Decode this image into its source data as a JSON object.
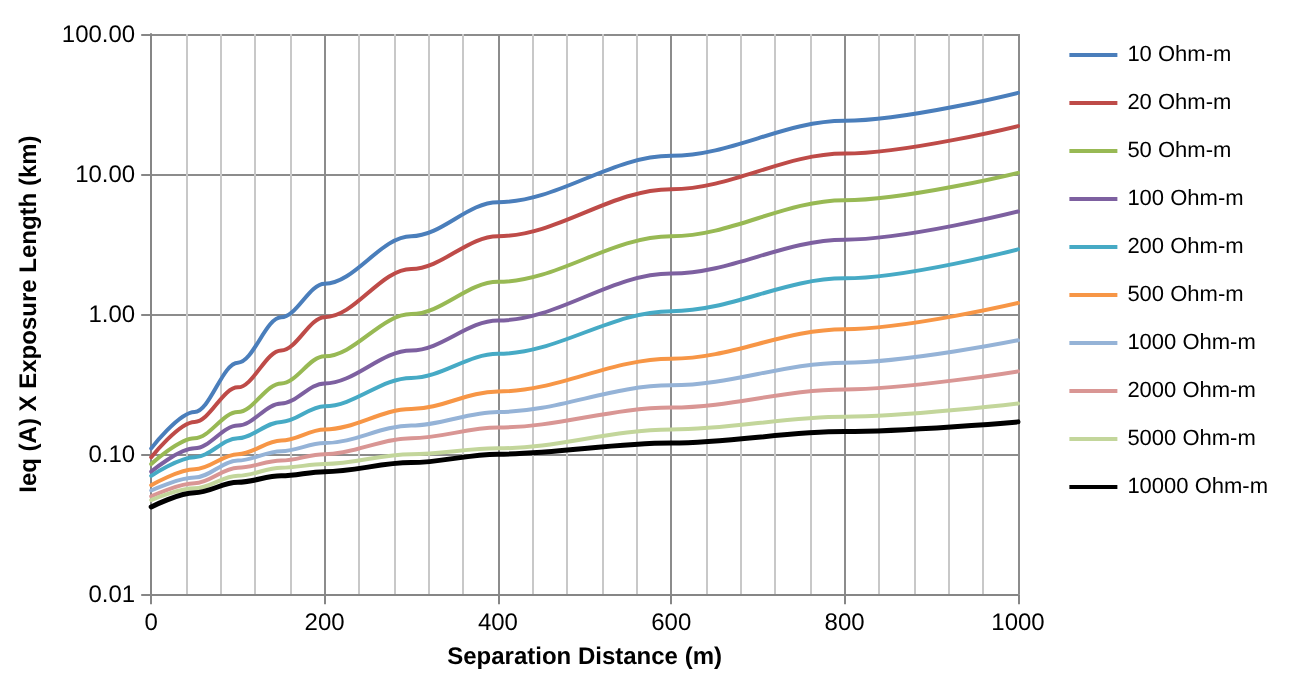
{
  "chart_data": {
    "type": "line",
    "xlabel": "Separation Distance (m)",
    "ylabel": "Ieq (A) X Exposure Length (km)",
    "x": [
      0,
      50,
      100,
      150,
      200,
      300,
      400,
      600,
      800,
      1000
    ],
    "series": [
      {
        "name": "10 Ohm-m",
        "color": "#4a7ebb",
        "values": [
          0.11,
          0.2,
          0.45,
          0.95,
          1.65,
          3.6,
          6.3,
          13.5,
          24,
          38
        ]
      },
      {
        "name": "20 Ohm-m",
        "color": "#be4b48",
        "values": [
          0.095,
          0.17,
          0.3,
          0.55,
          0.95,
          2.1,
          3.6,
          7.8,
          14,
          22
        ]
      },
      {
        "name": "50 Ohm-m",
        "color": "#98b954",
        "values": [
          0.085,
          0.13,
          0.2,
          0.32,
          0.5,
          1.0,
          1.7,
          3.6,
          6.5,
          10.2
        ]
      },
      {
        "name": "100 Ohm-m",
        "color": "#7d60a0",
        "values": [
          0.075,
          0.11,
          0.16,
          0.23,
          0.32,
          0.55,
          0.9,
          1.95,
          3.4,
          5.4
        ]
      },
      {
        "name": "200 Ohm-m",
        "color": "#46aac5",
        "values": [
          0.07,
          0.095,
          0.13,
          0.17,
          0.22,
          0.35,
          0.52,
          1.05,
          1.8,
          2.9
        ]
      },
      {
        "name": "500 Ohm-m",
        "color": "#f79646",
        "values": [
          0.06,
          0.078,
          0.1,
          0.125,
          0.15,
          0.21,
          0.28,
          0.48,
          0.78,
          1.2
        ]
      },
      {
        "name": "1000 Ohm-m",
        "color": "#95b3d7",
        "values": [
          0.055,
          0.068,
          0.09,
          0.105,
          0.12,
          0.16,
          0.2,
          0.31,
          0.45,
          0.65
        ]
      },
      {
        "name": "2000 Ohm-m",
        "color": "#d99694",
        "values": [
          0.05,
          0.062,
          0.08,
          0.09,
          0.1,
          0.13,
          0.155,
          0.215,
          0.29,
          0.39
        ]
      },
      {
        "name": "5000 Ohm-m",
        "color": "#c3d69b",
        "values": [
          0.047,
          0.057,
          0.07,
          0.08,
          0.085,
          0.1,
          0.11,
          0.15,
          0.185,
          0.23
        ]
      },
      {
        "name": "10000 Ohm-m",
        "color": "#000000",
        "values": [
          0.042,
          0.053,
          0.063,
          0.07,
          0.075,
          0.087,
          0.1,
          0.12,
          0.145,
          0.17
        ]
      }
    ],
    "xlim": [
      0,
      1000
    ],
    "xticks": [
      0,
      200,
      400,
      600,
      800,
      1000
    ],
    "ylim": [
      0.01,
      100
    ],
    "yticks": [
      {
        "value": 0.01,
        "label": "0.01"
      },
      {
        "value": 0.1,
        "label": "0.10"
      },
      {
        "value": 1,
        "label": "1.00"
      },
      {
        "value": 10,
        "label": "10.00"
      },
      {
        "value": 100,
        "label": "100.00"
      }
    ],
    "log": "y",
    "grid": true,
    "legend": "right",
    "marker": "none",
    "line_style": "solid"
  }
}
